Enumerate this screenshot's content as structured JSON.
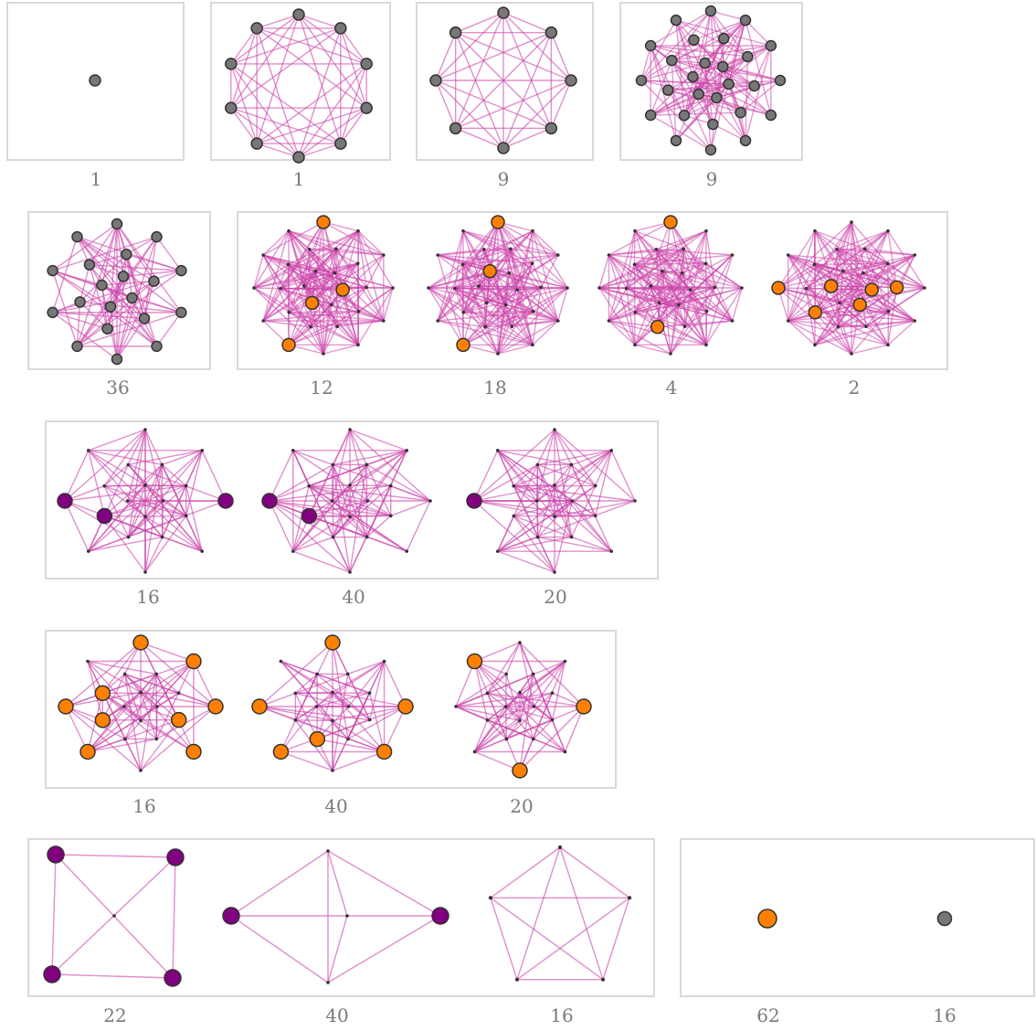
{
  "colors": {
    "edge": "#cc44aa",
    "frame": "#d9d9d9",
    "label": "#7a7a7a",
    "gray_vertex": "#777777",
    "orange_vertex": "#ff8000",
    "purple_vertex": "#800080",
    "vertex_stroke": "#333333",
    "small_vertex": "#333333"
  },
  "rows": [
    {
      "labels": [
        "1",
        "1",
        "9",
        "9"
      ]
    },
    {
      "labels": [
        "36",
        "12",
        "18",
        "4",
        "2"
      ]
    },
    {
      "labels": [
        "16",
        "40",
        "20"
      ]
    },
    {
      "labels": [
        "16",
        "40",
        "20"
      ]
    },
    {
      "labels": [
        "22",
        "40",
        "16",
        "62",
        "16"
      ]
    }
  ]
}
